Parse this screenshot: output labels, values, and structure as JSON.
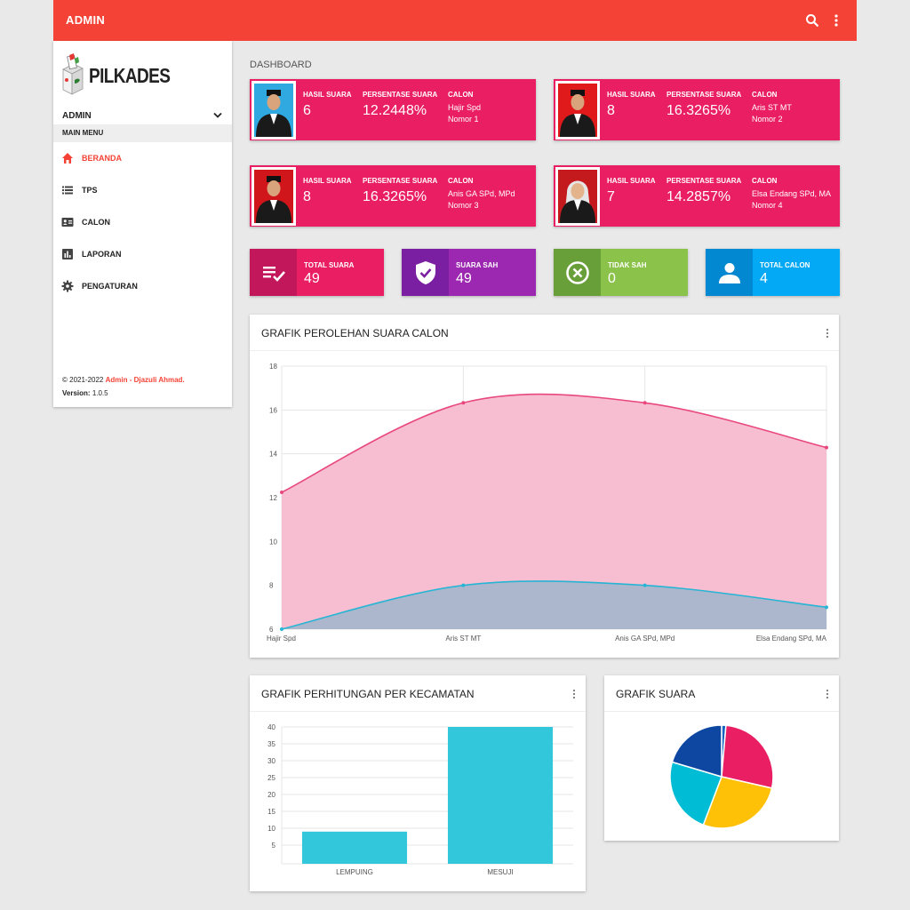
{
  "topbar": {
    "title": "ADMIN",
    "search_icon": "search-icon",
    "more_icon": "more-vert-icon",
    "color": "#f44336"
  },
  "sidebar": {
    "logo_text": "PILKADES",
    "user": "ADMIN",
    "menu_header": "MAIN MENU",
    "items": [
      {
        "label": "BERANDA",
        "icon": "home-icon",
        "active": true
      },
      {
        "label": "TPS",
        "icon": "list-icon",
        "active": false
      },
      {
        "label": "CALON",
        "icon": "id-card-icon",
        "active": false
      },
      {
        "label": "LAPORAN",
        "icon": "bar-chart-icon",
        "active": false
      },
      {
        "label": "PENGATURAN",
        "icon": "gear-icon",
        "active": false
      }
    ],
    "copyright": "© 2021-2022",
    "author": "Admin - Djazuli Ahmad.",
    "version_label": "Version:",
    "version": "1.0.5"
  },
  "page_title": "DASHBOARD",
  "candidates": [
    {
      "h_votes": "HASIL SUARA",
      "votes": "6",
      "h_pct": "PERSENTASE SUARA",
      "pct": "12.2448%",
      "h_cand": "CALON",
      "name": "Hajir Spd",
      "number": "Nomor 1",
      "photo_bg": "#2fa9e0"
    },
    {
      "h_votes": "HASIL SUARA",
      "votes": "8",
      "h_pct": "PERSENTASE SUARA",
      "pct": "16.3265%",
      "h_cand": "CALON",
      "name": "Aris ST MT",
      "number": "Nomor 2",
      "photo_bg": "#e0191b"
    },
    {
      "h_votes": "HASIL SUARA",
      "votes": "8",
      "h_pct": "PERSENTASE SUARA",
      "pct": "16.3265%",
      "h_cand": "CALON",
      "name": "Anis GA SPd, MPd",
      "number": "Nomor 3",
      "photo_bg": "#d0161a"
    },
    {
      "h_votes": "HASIL SUARA",
      "votes": "7",
      "h_pct": "PERSENTASE SUARA",
      "pct": "14.2857%",
      "h_cand": "CALON",
      "name": "Elsa Endang SPd, MA",
      "number": "Nomor 4",
      "photo_bg": "#c41a1e"
    }
  ],
  "stats": [
    {
      "label": "TOTAL SUARA",
      "value": "49",
      "icon": "checklist-icon",
      "color": "#e91e63",
      "icon_bg": "#c2185b"
    },
    {
      "label": "SUARA SAH",
      "value": "49",
      "icon": "shield-check-icon",
      "color": "#9c27b0",
      "icon_bg": "#7b1fa2"
    },
    {
      "label": "TIDAK SAH",
      "value": "0",
      "icon": "cancel-circle-icon",
      "color": "#8bc34a",
      "icon_bg": "#689f38"
    },
    {
      "label": "TOTAL CALON",
      "value": "4",
      "icon": "person-icon",
      "color": "#03a9f4",
      "icon_bg": "#0288d1"
    }
  ],
  "area_chart": {
    "title": "GRAFIK PEROLEHAN SUARA CALON",
    "chart_data": {
      "type": "area",
      "categories": [
        "Hajir Spd",
        "Aris ST MT",
        "Anis GA SPd, MPd",
        "Elsa Endang SPd, MA"
      ],
      "series": [
        {
          "values": [
            12.2448,
            16.3265,
            16.3265,
            14.2857
          ],
          "color": "#e8487d",
          "fill": "#f7b9cd"
        },
        {
          "values": [
            6,
            8,
            8,
            7
          ],
          "color": "#26b5d4",
          "fill": "#a8b6cc"
        }
      ],
      "yticks": [
        "6",
        "8",
        "10",
        "12",
        "14",
        "16",
        "18"
      ],
      "ylim": [
        6,
        18
      ],
      "grid": true
    }
  },
  "bar_chart": {
    "title": "GRAFIK PERHITUNGAN PER KECAMATAN",
    "chart_data": {
      "type": "bar",
      "categories": [
        "LEMPUING",
        "MESUJI"
      ],
      "values": [
        9,
        40
      ],
      "color": "#33c7dc",
      "yticks": [
        "5",
        "10",
        "15",
        "20",
        "25",
        "30",
        "35",
        "40"
      ],
      "ylim": [
        5,
        40
      ],
      "grid": true
    }
  },
  "pie_chart": {
    "title": "GRAFIK SUARA",
    "chart_data": {
      "type": "pie",
      "values": [
        6,
        8,
        8,
        7,
        0.4
      ],
      "colors": [
        "#0d47a1",
        "#e91e63",
        "#ffc107",
        "#00bcd4",
        "#1565c0"
      ]
    }
  }
}
